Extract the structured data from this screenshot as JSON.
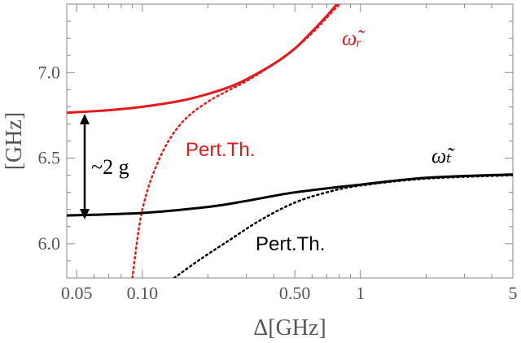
{
  "chart_data": {
    "type": "line",
    "xlabel": "Δ[GHz]",
    "ylabel": "[GHz]",
    "xscale": "log",
    "xlim": [
      0.045,
      5
    ],
    "ylim": [
      5.8,
      7.4
    ],
    "x_ticks": [
      {
        "value": 0.05,
        "label": "0.05"
      },
      {
        "value": 0.1,
        "label": "0.10"
      },
      {
        "value": 0.5,
        "label": "0.50"
      },
      {
        "value": 1,
        "label": "1"
      },
      {
        "value": 5,
        "label": "5"
      }
    ],
    "y_ticks": [
      {
        "value": 6.0,
        "label": "6.0"
      },
      {
        "value": 6.5,
        "label": "6.5"
      },
      {
        "value": 7.0,
        "label": "7.0"
      }
    ],
    "series": [
      {
        "color": "#e41a1c",
        "style": "solid",
        "label": "ω̃ᵣ",
        "points": [
          [
            0.045,
            6.765
          ],
          [
            0.07,
            6.78
          ],
          [
            0.1,
            6.8
          ],
          [
            0.15,
            6.835
          ],
          [
            0.2,
            6.875
          ],
          [
            0.25,
            6.915
          ],
          [
            0.3,
            6.96
          ],
          [
            0.4,
            7.05
          ],
          [
            0.5,
            7.14
          ],
          [
            0.6,
            7.24
          ],
          [
            0.7,
            7.33
          ],
          [
            0.78,
            7.4
          ]
        ]
      },
      {
        "color": "#e41a1c",
        "style": "dotted",
        "points": [
          [
            0.09,
            5.8
          ],
          [
            0.1,
            6.2
          ],
          [
            0.12,
            6.5
          ],
          [
            0.15,
            6.7
          ],
          [
            0.2,
            6.83
          ],
          [
            0.3,
            6.95
          ],
          [
            0.4,
            7.05
          ],
          [
            0.5,
            7.14
          ],
          [
            0.6,
            7.23
          ],
          [
            0.7,
            7.32
          ],
          [
            0.8,
            7.4
          ]
        ]
      },
      {
        "color": "#000000",
        "style": "solid",
        "label": "ω̃ₜ",
        "points": [
          [
            0.045,
            6.165
          ],
          [
            0.1,
            6.18
          ],
          [
            0.2,
            6.215
          ],
          [
            0.3,
            6.25
          ],
          [
            0.5,
            6.3
          ],
          [
            1,
            6.345
          ],
          [
            2,
            6.385
          ],
          [
            5,
            6.405
          ]
        ]
      },
      {
        "color": "#000000",
        "style": "dotted",
        "points": [
          [
            0.14,
            5.8
          ],
          [
            0.18,
            5.9
          ],
          [
            0.25,
            6.02
          ],
          [
            0.35,
            6.14
          ],
          [
            0.5,
            6.24
          ],
          [
            0.7,
            6.3
          ],
          [
            1,
            6.34
          ],
          [
            2,
            6.38
          ],
          [
            5,
            6.4
          ]
        ]
      }
    ],
    "annotations": {
      "omega_r": "ω̃ᵣ",
      "omega_t": "ω̃ₜ",
      "pert_red": "Pert.Th.",
      "pert_black": "Pert.Th.",
      "coupling": "~2 g"
    }
  }
}
